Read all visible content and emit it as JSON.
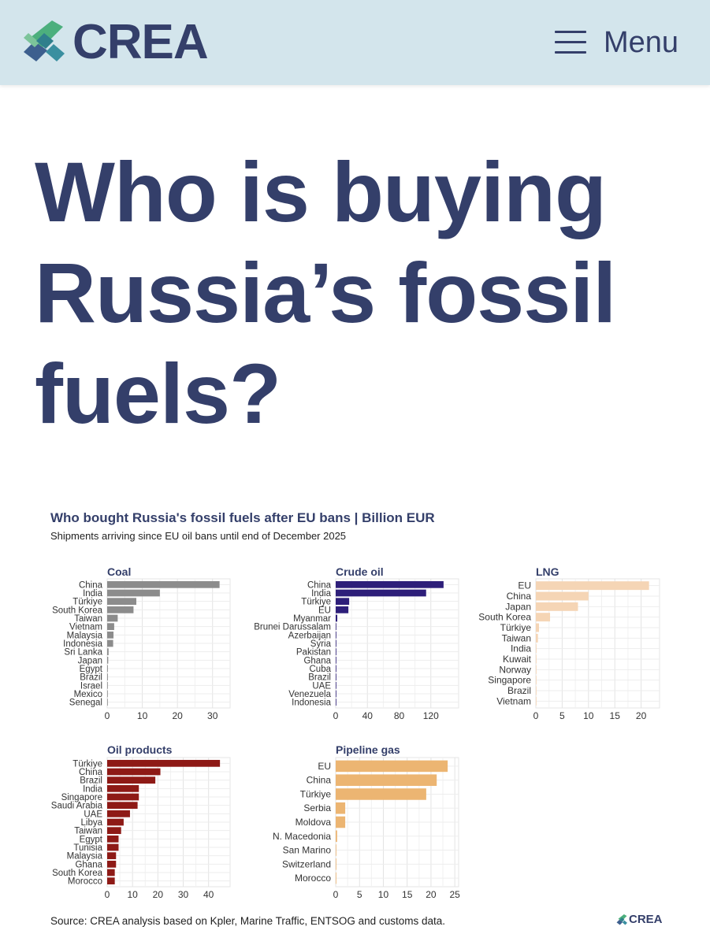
{
  "header": {
    "brand": "CREA",
    "menu_label": "Menu"
  },
  "article": {
    "headline": "Who is buying Russia’s fossil fuels?"
  },
  "figure": {
    "title": "Who bought Russia's fossil fuels after EU bans | Billion EUR",
    "subtitle": "Shipments arriving since EU oil bans until end of December 2025",
    "source": "Source: CREA analysis based on Kpler, Marine Traffic, ENTSOG and customs data.",
    "footer_brand": "CREA"
  },
  "colors": {
    "brand_navy": "#343f6a",
    "header_bg": "#d3e5ec",
    "logo_green": "#4caf7d",
    "logo_teal": "#3a8fa0",
    "logo_blue": "#3d5f8e"
  },
  "chart_data": [
    {
      "type": "bar",
      "orientation": "horizontal",
      "title": "Coal",
      "color": "#8c8c8c",
      "categories": [
        "China",
        "India",
        "Türkiye",
        "South Korea",
        "Taiwan",
        "Vietnam",
        "Malaysia",
        "Indonesia",
        "Sri Lanka",
        "Japan",
        "Egypt",
        "Brazil",
        "Israel",
        "Mexico",
        "Senegal"
      ],
      "values": [
        32,
        15,
        8.3,
        7.5,
        3,
        2,
        1.8,
        1.7,
        0.4,
        0.3,
        0.2,
        0.2,
        0.1,
        0.1,
        0.1
      ],
      "xlim": [
        0,
        35
      ],
      "xticks": [
        0,
        10,
        20,
        30
      ],
      "grid": true
    },
    {
      "type": "bar",
      "orientation": "horizontal",
      "title": "Crude oil",
      "color": "#2e1f7a",
      "categories": [
        "China",
        "India",
        "Türkiye",
        "EU",
        "Myanmar",
        "Brunei Darussalam",
        "Azerbaijan",
        "Syria",
        "Pakistan",
        "Ghana",
        "Cuba",
        "Brazil",
        "UAE",
        "Venezuela",
        "Indonesia"
      ],
      "values": [
        136,
        114,
        17,
        16,
        2,
        0.5,
        0.5,
        0.4,
        0.4,
        0.3,
        0.3,
        0.2,
        0.2,
        0.2,
        0.1
      ],
      "xlim": [
        0,
        155
      ],
      "xticks": [
        0,
        40,
        80,
        120
      ],
      "grid": true
    },
    {
      "type": "bar",
      "orientation": "horizontal",
      "title": "LNG",
      "color": "#f5d5b5",
      "categories": [
        "EU",
        "China",
        "Japan",
        "South Korea",
        "Türkiye",
        "Taiwan",
        "India",
        "Kuwait",
        "Norway",
        "Singapore",
        "Brazil",
        "Vietnam"
      ],
      "values": [
        21.5,
        10,
        8,
        2.7,
        0.6,
        0.4,
        0.1,
        0.1,
        0.05,
        0.05,
        0.05,
        0.05
      ],
      "xlim": [
        0,
        23.5
      ],
      "xticks": [
        0,
        5,
        10,
        15,
        20
      ],
      "grid": true
    },
    {
      "type": "bar",
      "orientation": "horizontal",
      "title": "Oil products",
      "color": "#8e1a16",
      "categories": [
        "Türkiye",
        "China",
        "Brazil",
        "India",
        "Singapore",
        "Saudi Arabia",
        "UAE",
        "Libya",
        "Taiwan",
        "Egypt",
        "Tunisia",
        "Malaysia",
        "Ghana",
        "South Korea",
        "Morocco"
      ],
      "values": [
        44.5,
        21,
        19,
        12.5,
        12.5,
        12,
        9,
        6.5,
        5.5,
        4.5,
        4.5,
        3.5,
        3.5,
        3,
        3
      ],
      "xlim": [
        0,
        48.5
      ],
      "xticks": [
        0,
        10,
        20,
        30,
        40
      ],
      "grid": true
    },
    {
      "type": "bar",
      "orientation": "horizontal",
      "title": "Pipeline gas",
      "color": "#ecb572",
      "categories": [
        "EU",
        "China",
        "Türkiye",
        "Serbia",
        "Moldova",
        "N. Macedonia",
        "San Marino",
        "Switzerland",
        "Morocco"
      ],
      "values": [
        23.5,
        21.2,
        19,
        2,
        2,
        0.3,
        0.1,
        0.1,
        0.1
      ],
      "xlim": [
        0,
        25.8
      ],
      "xticks": [
        0,
        5,
        10,
        15,
        20,
        25
      ],
      "grid": true
    }
  ]
}
